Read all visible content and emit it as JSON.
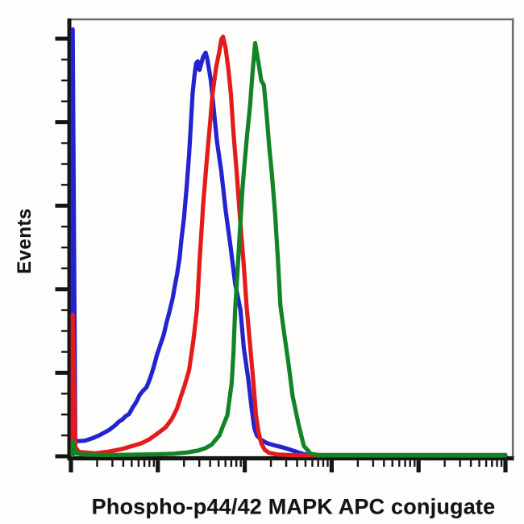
{
  "figure": {
    "kind": "flow cytometry overlay histogram",
    "background_color": "#fdfdfb"
  },
  "chart_data": {
    "type": "line",
    "subtype": "flow_cytometry_histogram_overlay",
    "title": "",
    "xlabel": "Phospho-p44/42 MAPK APC conjugate",
    "ylabel": "Events",
    "x_axis": {
      "scale": "log10",
      "decades": 5,
      "range": [
        1,
        100000
      ],
      "numeric_tick_labels_visible": false,
      "minor_ticks": "log positions 2-9 within each decade"
    },
    "y_axis": {
      "scale": "linear",
      "units": "relative event count (% of max)",
      "range": [
        0,
        100
      ],
      "major_tick_count": 6,
      "minor_ticks_between_majors": 3,
      "numeric_tick_labels_visible": false
    },
    "grid": false,
    "legend": {
      "visible": false
    },
    "frame": {
      "axis_color": "#151515",
      "box_color": "#6e6e6e"
    },
    "series": [
      {
        "name": "blue curve (leftmost peak)",
        "color": "#2323cf",
        "peak_x_decade": 1.55,
        "peak_height_pct": 93.5,
        "edge_spike_height_pct": 98.9,
        "points": [
          [
            0.02,
            0.5
          ],
          [
            0.02,
            98.9
          ],
          [
            0.05,
            3.5
          ],
          [
            0.16,
            3.6
          ],
          [
            0.25,
            4.2
          ],
          [
            0.34,
            5.0
          ],
          [
            0.44,
            6.1
          ],
          [
            0.51,
            7.2
          ],
          [
            0.55,
            8.0
          ],
          [
            0.59,
            8.5
          ],
          [
            0.63,
            9.3
          ],
          [
            0.67,
            9.8
          ],
          [
            0.71,
            11.3
          ],
          [
            0.74,
            12.2
          ],
          [
            0.76,
            12.9
          ],
          [
            0.79,
            14.2
          ],
          [
            0.83,
            15.2
          ],
          [
            0.87,
            16.0
          ],
          [
            0.91,
            18.0
          ],
          [
            0.95,
            20.5
          ],
          [
            0.99,
            23.5
          ],
          [
            1.04,
            26.5
          ],
          [
            1.07,
            28.3
          ],
          [
            1.1,
            31.0
          ],
          [
            1.13,
            33.2
          ],
          [
            1.17,
            36.5
          ],
          [
            1.2,
            40
          ],
          [
            1.22,
            42
          ],
          [
            1.25,
            46
          ],
          [
            1.27,
            50
          ],
          [
            1.3,
            55
          ],
          [
            1.33,
            62
          ],
          [
            1.36,
            70
          ],
          [
            1.38,
            77
          ],
          [
            1.4,
            84
          ],
          [
            1.42,
            88
          ],
          [
            1.44,
            91
          ],
          [
            1.46,
            91.5
          ],
          [
            1.48,
            89.5
          ],
          [
            1.5,
            91
          ],
          [
            1.52,
            92.5
          ],
          [
            1.55,
            93.5
          ],
          [
            1.57,
            92
          ],
          [
            1.59,
            89.5
          ],
          [
            1.61,
            87
          ],
          [
            1.64,
            81
          ],
          [
            1.68,
            73
          ],
          [
            1.73,
            66
          ],
          [
            1.78,
            57
          ],
          [
            1.84,
            48
          ],
          [
            1.89,
            40
          ],
          [
            1.95,
            34
          ],
          [
            1.99,
            25
          ],
          [
            2.04,
            18
          ],
          [
            2.08,
            11
          ],
          [
            2.11,
            6.5
          ],
          [
            2.14,
            4.8
          ],
          [
            2.19,
            3.8
          ],
          [
            2.26,
            3.0
          ],
          [
            2.35,
            2.5
          ],
          [
            2.43,
            2.1
          ],
          [
            2.51,
            1.6
          ],
          [
            2.6,
            1.0
          ],
          [
            2.68,
            0.5
          ],
          [
            2.76,
            0.25
          ],
          [
            2.88,
            0.15
          ],
          [
            5.0,
            0.15
          ]
        ]
      },
      {
        "name": "red curve (middle peak)",
        "color": "#e31b1b",
        "peak_x_decade": 1.75,
        "peak_height_pct": 97.2,
        "edge_spike_height_pct": 32.8,
        "points": [
          [
            0.02,
            0.4
          ],
          [
            0.02,
            32.8
          ],
          [
            0.05,
            2.2
          ],
          [
            0.09,
            1.0
          ],
          [
            0.28,
            0.7
          ],
          [
            0.44,
            1.1
          ],
          [
            0.59,
            1.7
          ],
          [
            0.71,
            2.4
          ],
          [
            0.81,
            3.0
          ],
          [
            0.9,
            3.9
          ],
          [
            0.99,
            5.2
          ],
          [
            1.09,
            6.7
          ],
          [
            1.16,
            8.6
          ],
          [
            1.22,
            11
          ],
          [
            1.26,
            13.5
          ],
          [
            1.31,
            16.5
          ],
          [
            1.36,
            20
          ],
          [
            1.41,
            27
          ],
          [
            1.45,
            34
          ],
          [
            1.48,
            45
          ],
          [
            1.52,
            58
          ],
          [
            1.56,
            68
          ],
          [
            1.6,
            77
          ],
          [
            1.63,
            84
          ],
          [
            1.67,
            90
          ],
          [
            1.71,
            94
          ],
          [
            1.73,
            96.5
          ],
          [
            1.75,
            97.2
          ],
          [
            1.78,
            94.5
          ],
          [
            1.81,
            90
          ],
          [
            1.84,
            84
          ],
          [
            1.87,
            75
          ],
          [
            1.91,
            65
          ],
          [
            1.95,
            54
          ],
          [
            1.99,
            44
          ],
          [
            2.02,
            35
          ],
          [
            2.06,
            26
          ],
          [
            2.1,
            17
          ],
          [
            2.13,
            9.5
          ],
          [
            2.16,
            5.5
          ],
          [
            2.19,
            3.0
          ],
          [
            2.23,
            1.5
          ],
          [
            2.28,
            0.8
          ],
          [
            2.38,
            0.4
          ],
          [
            2.57,
            0.25
          ],
          [
            5.0,
            0.2
          ]
        ]
      },
      {
        "name": "green curve (rightmost peak)",
        "color": "#128426",
        "peak_x_decade": 2.12,
        "peak_height_pct": 95.7,
        "edge_spike_height_pct": 3.5,
        "points": [
          [
            0.02,
            0.3
          ],
          [
            0.02,
            3.5
          ],
          [
            0.06,
            0.7
          ],
          [
            0.16,
            0.4
          ],
          [
            0.39,
            0.3
          ],
          [
            0.67,
            0.35
          ],
          [
            0.95,
            0.45
          ],
          [
            1.18,
            0.6
          ],
          [
            1.34,
            0.9
          ],
          [
            1.46,
            1.3
          ],
          [
            1.55,
            1.9
          ],
          [
            1.62,
            2.7
          ],
          [
            1.71,
            4.9
          ],
          [
            1.75,
            7.0
          ],
          [
            1.8,
            9.5
          ],
          [
            1.85,
            17
          ],
          [
            1.87,
            24
          ],
          [
            1.89,
            34
          ],
          [
            1.92,
            44
          ],
          [
            1.97,
            61
          ],
          [
            1.99,
            66
          ],
          [
            2.03,
            75
          ],
          [
            2.06,
            81
          ],
          [
            2.09,
            89
          ],
          [
            2.12,
            95.7
          ],
          [
            2.16,
            91
          ],
          [
            2.19,
            87
          ],
          [
            2.22,
            86
          ],
          [
            2.25,
            79.5
          ],
          [
            2.28,
            72
          ],
          [
            2.31,
            66
          ],
          [
            2.35,
            56
          ],
          [
            2.38,
            46
          ],
          [
            2.41,
            35
          ],
          [
            2.45,
            29
          ],
          [
            2.5,
            22
          ],
          [
            2.55,
            14
          ],
          [
            2.62,
            7.3
          ],
          [
            2.68,
            2.4
          ],
          [
            2.76,
            0.6
          ],
          [
            2.85,
            0.3
          ],
          [
            5.0,
            0.3
          ]
        ]
      }
    ]
  }
}
